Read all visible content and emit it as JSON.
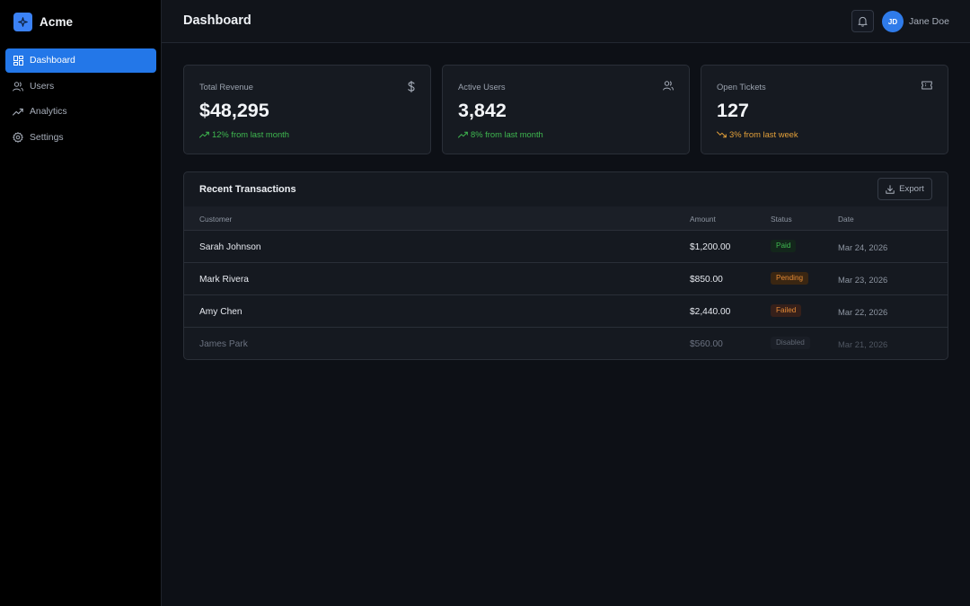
{
  "sidebar": {
    "brand": "Acme",
    "items": [
      {
        "label": "Dashboard",
        "icon": "dashboard-icon",
        "active": true
      },
      {
        "label": "Users",
        "icon": "users-icon",
        "active": false
      },
      {
        "label": "Analytics",
        "icon": "analytics-icon",
        "active": false
      },
      {
        "label": "Settings",
        "icon": "settings-icon",
        "active": false
      }
    ]
  },
  "header": {
    "title": "Dashboard",
    "bell_icon": "bell-icon",
    "user": {
      "initials": "JD",
      "name": "Jane Doe"
    }
  },
  "stats": [
    {
      "label": "Total Revenue",
      "value": "$48,295",
      "trend": "12% from last month",
      "direction": "up",
      "icon": "dollar-icon"
    },
    {
      "label": "Active Users",
      "value": "3,842",
      "trend": "8% from last month",
      "direction": "up",
      "icon": "users-icon"
    },
    {
      "label": "Open Tickets",
      "value": "127",
      "trend": "3% from last week",
      "direction": "down",
      "icon": "ticket-icon"
    }
  ],
  "transactions": {
    "title": "Recent Transactions",
    "export_label": "Export",
    "columns": [
      "Customer",
      "Amount",
      "Status",
      "Date"
    ],
    "rows": [
      {
        "customer": "Sarah Johnson",
        "amount": "$1,200.00",
        "status": "Paid",
        "date": "Mar 24, 2026"
      },
      {
        "customer": "Mark Rivera",
        "amount": "$850.00",
        "status": "Pending",
        "date": "Mar 23, 2026"
      },
      {
        "customer": "Amy Chen",
        "amount": "$2,440.00",
        "status": "Failed",
        "date": "Mar 22, 2026"
      },
      {
        "customer": "James Park",
        "amount": "$560.00",
        "status": "Disabled",
        "date": "Mar 21, 2026"
      }
    ]
  },
  "colors": {
    "accent": "#2377e8",
    "success": "#3fb950",
    "warning": "#e3a03a",
    "background": "#0d1016"
  }
}
